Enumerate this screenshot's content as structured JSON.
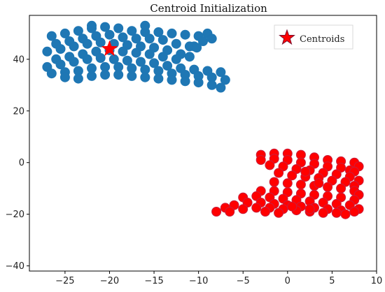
{
  "chart_data": {
    "type": "scatter",
    "title": "Centroid Initialization",
    "xlabel": "",
    "ylabel": "",
    "xlim": [
      -29,
      10
    ],
    "ylim": [
      -42,
      57
    ],
    "xticks": [
      -25,
      -20,
      -15,
      -10,
      -5,
      0,
      5,
      10
    ],
    "yticks": [
      -40,
      -20,
      0,
      20,
      40
    ],
    "grid": false,
    "legend": {
      "placement": "top-right",
      "entries": [
        "Centroids"
      ]
    },
    "series": [
      {
        "color": "#1f77b4",
        "points": [
          [
            -26.5,
            49
          ],
          [
            -25,
            50
          ],
          [
            -23.5,
            51
          ],
          [
            -22,
            52
          ],
          [
            -20.5,
            52.5
          ],
          [
            -19,
            52
          ],
          [
            -17.5,
            51
          ],
          [
            -16,
            50.5
          ],
          [
            -14.5,
            50.5
          ],
          [
            -13,
            50
          ],
          [
            -11.5,
            49.5
          ],
          [
            -10,
            49
          ],
          [
            -9.5,
            47
          ],
          [
            -10.5,
            45
          ],
          [
            -26,
            46
          ],
          [
            -24.5,
            47
          ],
          [
            -23,
            48
          ],
          [
            -21.5,
            49
          ],
          [
            -20,
            49.5
          ],
          [
            -18.5,
            48.5
          ],
          [
            -17,
            48
          ],
          [
            -15.5,
            48
          ],
          [
            -14,
            47.5
          ],
          [
            -12.5,
            46
          ],
          [
            -11,
            45
          ],
          [
            -10.2,
            44.5
          ],
          [
            -27,
            43
          ],
          [
            -25.5,
            44
          ],
          [
            -24,
            45
          ],
          [
            -22.5,
            46
          ],
          [
            -21,
            46.5
          ],
          [
            -19.5,
            46
          ],
          [
            -18,
            45.5
          ],
          [
            -16.5,
            45
          ],
          [
            -15,
            44.5
          ],
          [
            -13.5,
            43.5
          ],
          [
            -12,
            42
          ],
          [
            -11,
            41
          ],
          [
            -26,
            40
          ],
          [
            -24.5,
            41
          ],
          [
            -23,
            42
          ],
          [
            -21.5,
            43
          ],
          [
            -20,
            43.5
          ],
          [
            -18.5,
            43
          ],
          [
            -17,
            42.5
          ],
          [
            -15.5,
            42
          ],
          [
            -14,
            41
          ],
          [
            -12.5,
            40
          ],
          [
            -27,
            37
          ],
          [
            -25.5,
            38
          ],
          [
            -24,
            39
          ],
          [
            -22.5,
            40
          ],
          [
            -21,
            40.5
          ],
          [
            -19.5,
            40
          ],
          [
            -18,
            39.5
          ],
          [
            -16.5,
            39
          ],
          [
            -15,
            38.5
          ],
          [
            -13.5,
            37.5
          ],
          [
            -12,
            36.5
          ],
          [
            -10.5,
            36
          ],
          [
            -9,
            35.5
          ],
          [
            -7.5,
            35
          ],
          [
            -26.5,
            34.5
          ],
          [
            -25,
            35
          ],
          [
            -23.5,
            35.5
          ],
          [
            -22,
            36.5
          ],
          [
            -20.5,
            37
          ],
          [
            -19,
            37
          ],
          [
            -17.5,
            36.5
          ],
          [
            -16,
            36
          ],
          [
            -14.5,
            35.5
          ],
          [
            -13,
            34.5
          ],
          [
            -11.5,
            34
          ],
          [
            -10,
            33.5
          ],
          [
            -8.5,
            33
          ],
          [
            -7,
            32
          ],
          [
            -25,
            33
          ],
          [
            -23.5,
            32.5
          ],
          [
            -22,
            33.5
          ],
          [
            -20.5,
            34
          ],
          [
            -19,
            34
          ],
          [
            -17.5,
            33.5
          ],
          [
            -16,
            33
          ],
          [
            -14.5,
            32.5
          ],
          [
            -13,
            32
          ],
          [
            -11.5,
            31.5
          ],
          [
            -10,
            31
          ],
          [
            -8.5,
            30
          ],
          [
            -7.5,
            29
          ],
          [
            -9,
            50
          ],
          [
            -8.5,
            48
          ],
          [
            -16,
            53
          ],
          [
            -22,
            53
          ]
        ]
      },
      {
        "color": "#ff0000",
        "points": [
          [
            -3,
            3
          ],
          [
            -1.5,
            3.5
          ],
          [
            0,
            3.5
          ],
          [
            1.5,
            3
          ],
          [
            3,
            2
          ],
          [
            4.5,
            1
          ],
          [
            6,
            0.5
          ],
          [
            7.5,
            0
          ],
          [
            8,
            -1.5
          ],
          [
            7,
            -3
          ],
          [
            -3,
            1
          ],
          [
            -1.5,
            1.5
          ],
          [
            0,
            1
          ],
          [
            1.5,
            0
          ],
          [
            3,
            -0.5
          ],
          [
            4.5,
            -1.5
          ],
          [
            6,
            -2
          ],
          [
            7.5,
            -3.5
          ],
          [
            -2,
            -1
          ],
          [
            -0.5,
            -1.5
          ],
          [
            1,
            -2.5
          ],
          [
            2.5,
            -3
          ],
          [
            4,
            -4
          ],
          [
            5.5,
            -4.5
          ],
          [
            7,
            -5.5
          ],
          [
            8,
            -7
          ],
          [
            -1,
            -4
          ],
          [
            0.5,
            -5
          ],
          [
            2,
            -5.5
          ],
          [
            3.5,
            -6
          ],
          [
            5,
            -7
          ],
          [
            6.5,
            -7.5
          ],
          [
            7.5,
            -9
          ],
          [
            -1.5,
            -7.5
          ],
          [
            0,
            -8
          ],
          [
            1.5,
            -8.5
          ],
          [
            3,
            -9
          ],
          [
            4.5,
            -9.5
          ],
          [
            6,
            -10
          ],
          [
            7.5,
            -11
          ],
          [
            8,
            -12.5
          ],
          [
            -3,
            -11
          ],
          [
            -1.5,
            -11
          ],
          [
            0,
            -11.5
          ],
          [
            1.5,
            -12
          ],
          [
            3,
            -12.5
          ],
          [
            4.5,
            -13
          ],
          [
            6,
            -13.5
          ],
          [
            7.5,
            -14.5
          ],
          [
            -5,
            -13.5
          ],
          [
            -3.5,
            -13
          ],
          [
            -2,
            -13.5
          ],
          [
            -0.5,
            -14
          ],
          [
            1,
            -14.5
          ],
          [
            2.5,
            -15
          ],
          [
            4,
            -15.5
          ],
          [
            5.5,
            -16
          ],
          [
            7,
            -16.5
          ],
          [
            8,
            -18
          ],
          [
            -8,
            -19
          ],
          [
            -7,
            -17.5
          ],
          [
            -6,
            -16.5
          ],
          [
            -4.5,
            -15.5
          ],
          [
            -3,
            -15.5
          ],
          [
            -1.5,
            -16
          ],
          [
            0,
            -16.5
          ],
          [
            1.5,
            -17
          ],
          [
            3,
            -17.5
          ],
          [
            4.5,
            -18
          ],
          [
            6,
            -18.5
          ],
          [
            7.5,
            -19
          ],
          [
            -6.5,
            -19
          ],
          [
            -5,
            -18
          ],
          [
            -3.5,
            -17.5
          ],
          [
            -2,
            -17.5
          ],
          [
            -0.5,
            -18
          ],
          [
            1,
            -18.5
          ],
          [
            2.5,
            -19
          ],
          [
            4,
            -19.5
          ],
          [
            5.5,
            -19.5
          ],
          [
            -2.5,
            -19
          ],
          [
            -1,
            -19.5
          ],
          [
            6.5,
            -20
          ],
          [
            2.5,
            -18
          ],
          [
            0.5,
            -17
          ],
          [
            3.5,
            -8
          ],
          [
            2,
            -3.5
          ]
        ]
      }
    ],
    "centroids": [
      [
        -20,
        44
      ],
      [
        0,
        49
      ]
    ]
  }
}
